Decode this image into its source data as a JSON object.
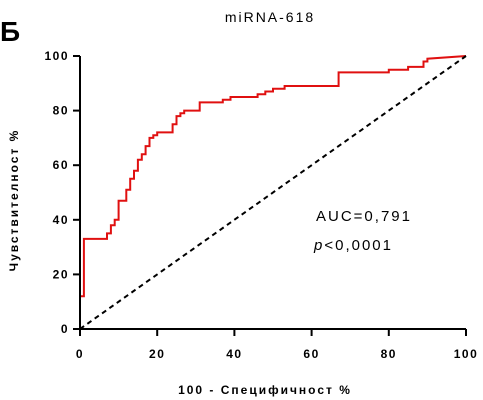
{
  "panel_letter": "Б",
  "chart_data": {
    "type": "line",
    "title": "miRNA-618",
    "xlabel": "100 - Специфичност %",
    "ylabel": "Чувствителност %",
    "xlim": [
      0,
      100
    ],
    "ylim": [
      0,
      100
    ],
    "xticks": [
      "0",
      "20",
      "40",
      "60",
      "80",
      "100"
    ],
    "yticks": [
      "0",
      "20",
      "40",
      "60",
      "80",
      "100"
    ],
    "colors": {
      "roc": "#e01010",
      "reference": "#000000"
    },
    "series": [
      {
        "style": "step",
        "x": [
          0,
          0,
          1,
          1,
          7,
          7,
          8,
          8,
          9,
          9,
          10,
          10,
          12,
          12,
          13,
          13,
          14,
          14,
          15,
          15,
          16,
          16,
          17,
          17,
          18,
          18,
          19,
          19,
          20,
          20,
          21,
          21,
          24,
          24,
          25,
          25,
          26,
          26,
          27,
          27,
          28,
          28,
          31,
          31,
          36,
          36,
          37,
          37,
          39,
          39,
          44,
          44,
          46,
          46,
          48,
          48,
          50,
          50,
          53,
          53,
          67,
          67,
          80,
          80,
          85,
          85,
          89,
          89,
          90,
          90,
          100
        ],
        "y": [
          0,
          12,
          12,
          33,
          33,
          35,
          35,
          38,
          38,
          40,
          40,
          47,
          47,
          51,
          51,
          55,
          55,
          58,
          58,
          62,
          62,
          64,
          64,
          67,
          67,
          70,
          70,
          71,
          71,
          72,
          72,
          72,
          72,
          75,
          75,
          78,
          78,
          79,
          79,
          80,
          80,
          80,
          80,
          83,
          83,
          83,
          83,
          84,
          84,
          85,
          85,
          85,
          85,
          86,
          86,
          87,
          87,
          88,
          88,
          89,
          89,
          94,
          94,
          95,
          95,
          96,
          96,
          98,
          98,
          99,
          100
        ]
      },
      {
        "style": "dashed",
        "x": [
          0,
          100
        ],
        "y": [
          0,
          100
        ]
      }
    ],
    "annotations": {
      "auc": "AUC=0,791",
      "p_label": "p",
      "p_value": "<0,0001"
    }
  }
}
